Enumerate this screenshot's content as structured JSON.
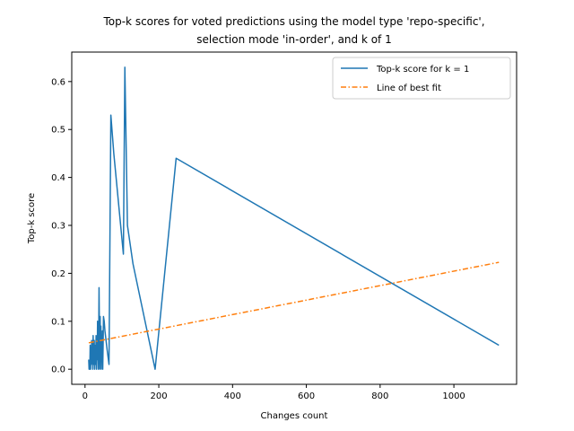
{
  "chart_data": {
    "type": "line",
    "title_lines": [
      "Top-k scores for voted predictions using the model type 'repo-specific',",
      "selection mode 'in-order', and k of 1"
    ],
    "xlabel": "Changes count",
    "ylabel": "Top-k score",
    "xlim": [
      -36.0,
      1170.0
    ],
    "ylim": [
      -0.0315,
      0.6615
    ],
    "xticks": [
      0,
      200,
      400,
      600,
      800,
      1000
    ],
    "yticks": [
      0.0,
      0.1,
      0.2,
      0.3,
      0.4,
      0.5,
      0.6
    ],
    "legend_position": "upper right",
    "grid": false,
    "series": [
      {
        "name": "Top-k score for k = 1",
        "color": "#1f77b4",
        "style": "solid",
        "x": [
          10,
          11,
          12,
          13,
          14,
          15,
          16,
          17,
          18,
          19,
          20,
          21,
          22,
          23,
          24,
          25,
          26,
          27,
          28,
          29,
          30,
          31,
          32,
          33,
          34,
          35,
          36,
          37,
          38,
          39,
          40,
          41,
          42,
          43,
          44,
          45,
          46,
          47,
          48,
          49,
          50,
          52,
          54,
          57,
          60,
          65,
          70,
          78,
          104,
          108,
          115,
          130,
          190,
          247,
          1122
        ],
        "y": [
          0.02,
          0.0,
          0.01,
          0.0,
          0.05,
          0.0,
          0.03,
          0.01,
          0.06,
          0.02,
          0.05,
          0.0,
          0.07,
          0.03,
          0.01,
          0.06,
          0.0,
          0.04,
          0.05,
          0.01,
          0.07,
          0.0,
          0.06,
          0.02,
          0.1,
          0.04,
          0.0,
          0.06,
          0.17,
          0.08,
          0.0,
          0.11,
          0.05,
          0.09,
          0.0,
          0.07,
          0.02,
          0.08,
          0.0,
          0.05,
          0.11,
          0.1,
          0.08,
          0.06,
          0.04,
          0.01,
          0.53,
          0.45,
          0.24,
          0.63,
          0.3,
          0.22,
          0.0,
          0.44,
          0.05
        ]
      },
      {
        "name": "Line of best fit",
        "color": "#ff7f0e",
        "style": "dashdot",
        "x": [
          10,
          1122
        ],
        "y": [
          0.055,
          0.223
        ]
      }
    ]
  }
}
